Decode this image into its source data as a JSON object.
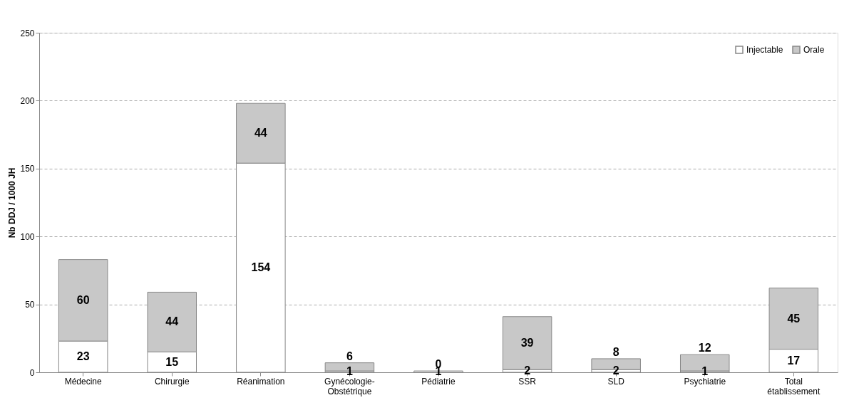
{
  "chart_data": {
    "type": "bar",
    "stacked": true,
    "ylabel": "Nb DDJ / 1000 JH",
    "categories": [
      "Médecine",
      "Chirurgie",
      "Réanimation",
      "Gynécologie-Obstétrique",
      "Pédiatrie",
      "SSR",
      "SLD",
      "Psychiatrie",
      "Total établissement"
    ],
    "series": [
      {
        "name": "Injectable",
        "color": "#ffffff",
        "values": [
          23,
          15,
          154,
          1,
          1,
          2,
          2,
          1,
          17
        ]
      },
      {
        "name": "Orale",
        "color": "#c8c8c8",
        "values": [
          60,
          44,
          44,
          6,
          0,
          39,
          8,
          12,
          45
        ]
      }
    ],
    "ylim": [
      0,
      250
    ],
    "yticks": [
      0,
      50,
      100,
      150,
      200,
      250
    ],
    "grid": "y",
    "legend": "top right",
    "data_labels": true
  }
}
